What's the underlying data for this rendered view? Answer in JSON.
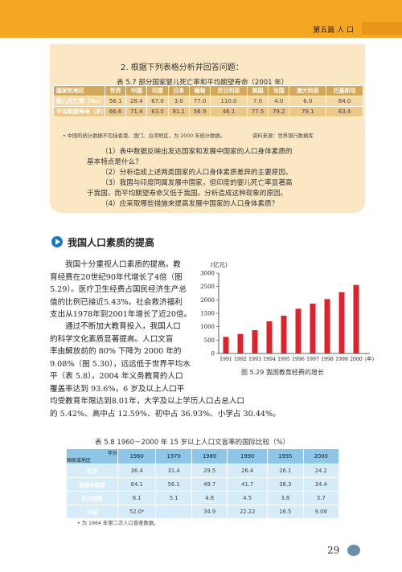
{
  "header": {
    "chapter": "第五篇  人  口"
  },
  "box": {
    "question": "2. 根据下列表格分析并回答问题：",
    "table_caption": "表 5.7   部分国家婴儿死亡率和平均期望寿命（2001 年）",
    "columns": [
      "国家和地区",
      "世界",
      "中国",
      "印度",
      "日本",
      "缅甸",
      "尼日利亚",
      "美国",
      "法国",
      "澳大利亚",
      "巴基斯坦"
    ],
    "rows": [
      {
        "label": "婴儿死亡率（‰）",
        "values": [
          "56.1",
          "28.4",
          "67.0",
          "3.0",
          "77.0",
          "110.0",
          "7.0",
          "4.0",
          "6.0",
          "84.0"
        ]
      },
      {
        "label": "平均期望寿命（岁）",
        "values": [
          "66.6",
          "71.4",
          "63.0",
          "81.1",
          "56.9",
          "46.1",
          "77.5",
          "79.2",
          "79.1",
          "63.4"
        ]
      }
    ],
    "note": "• 中国的统计数据不包括香港、澳门、台湾地区，为 2000 年统计数据。",
    "source": "资料来源：世界银行数据库",
    "questions": [
      "（1）表中数据反映出发达国家和发展中国家的人口身体素质的",
      "基本特点是什么？",
      "（2）分析造成上述两类国家的人口身体素质差异的主要原因。",
      "（3）我国与印度同属发展中国家，但印度的婴儿死亡率显著高",
      "于我国，而平均期望寿命又低于我国。分析造成这种现象的原因。",
      "（4）应采取哪些措施来提高发展中国家的人口身体素质？"
    ]
  },
  "section": {
    "title": "我国人口素质的提高"
  },
  "paragraphs": {
    "p1": [
      "我国十分重视人口素质的提高。教",
      "育经费在20世纪90年代增长了4倍（图",
      "5.29）。医疗卫生经费占国民经济生产总",
      "值的比例已接近5.43%。社会救济福利",
      "支出从1978年到2001年增长了近20倍。"
    ],
    "p2": [
      "通过不断加大教育投入，我国人口",
      "的科学文化素质显著提高。人口文盲",
      "率由解放前的 80% 下降为 2000 年的",
      "9.08%（图 5.30），远远低于世界平均水",
      "平（表 5.8）。2004 年义务教育的人口",
      "覆盖率达到 93.6%，6 岁及以上人口平"
    ],
    "p3": [
      "均受教育年限达到8.01年，大学及以上学历人口占总人口",
      "的 5.42%、高中占 12.59%、初中占 36.93%、小学占 30.44%。"
    ]
  },
  "chart_data": {
    "type": "bar",
    "ylabel": "(亿元)",
    "xlabel": "(年)",
    "ylim": [
      0,
      3000
    ],
    "yticks": [
      0,
      500,
      1000,
      1500,
      2000,
      2500,
      3000
    ],
    "categories": [
      "1991",
      "1992",
      "1993",
      "1994",
      "1995",
      "1996",
      "1997",
      "1998",
      "1999",
      "2000"
    ],
    "values": [
      620,
      730,
      870,
      1200,
      1410,
      1670,
      1860,
      2030,
      2290,
      2560
    ],
    "color": "#d9232d",
    "caption": "图 5.29   我国教育经费的增长"
  },
  "table2": {
    "caption": "表 5.8   1960－2000 年 15 岁以上人口文盲率的国际比较（%）",
    "corner_top": "年份",
    "corner_bottom": "国家或地区",
    "years": [
      "1960",
      "1970",
      "1980",
      "1990",
      "1995",
      "2000"
    ],
    "rows": [
      {
        "label": "世界",
        "values": [
          "36.4",
          "31.4",
          "29.5",
          "26.4",
          "26.1",
          "24.2"
        ]
      },
      {
        "label": "发展中国家",
        "values": [
          "64.1",
          "56.1",
          "49.7",
          "41.7",
          "38.3",
          "34.4"
        ]
      },
      {
        "label": "发达国家",
        "values": [
          "6.1",
          "5.1",
          "4.8",
          "4.5",
          "3.8",
          "3.7"
        ]
      },
      {
        "label": "中国",
        "values": [
          "52.0*",
          "",
          "34.9",
          "22.22",
          "16.5",
          "9.08"
        ]
      }
    ],
    "note": "• 为 1964 年第二次人口普查数据。"
  },
  "footer": {
    "page": "29"
  }
}
